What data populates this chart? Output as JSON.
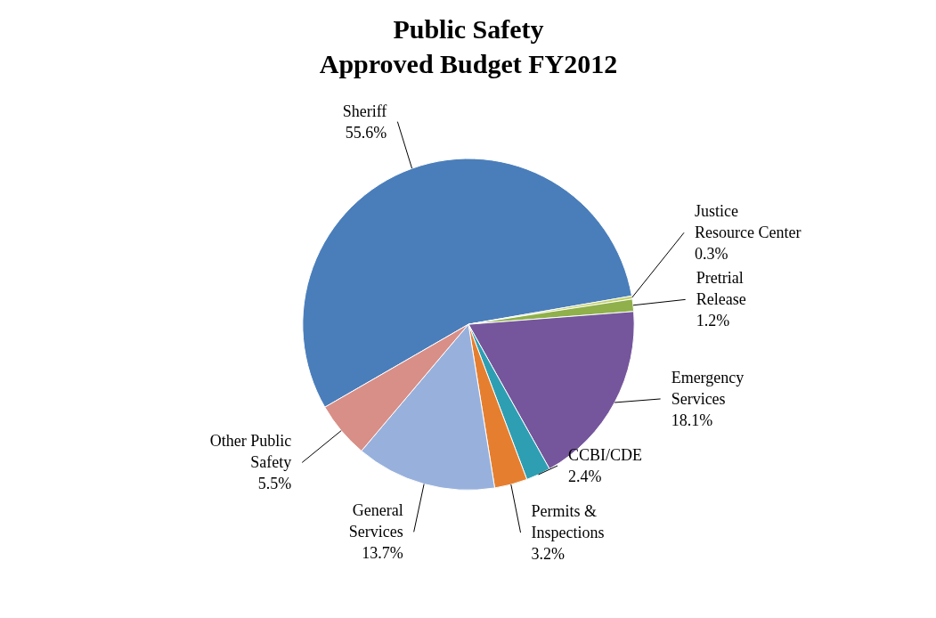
{
  "chart_data": {
    "type": "pie",
    "title": "Public Safety\nApproved Budget FY2012",
    "categories": [
      "Sheriff",
      "Justice Resource Center",
      "Pretrial Release",
      "Emergency Services",
      "CCBI/CDE",
      "Permits & Inspections",
      "General Services",
      "Other Public Safety"
    ],
    "values": [
      55.6,
      0.3,
      1.2,
      18.1,
      2.4,
      3.2,
      13.7,
      5.5
    ],
    "colors": [
      "#4a7ebb",
      "#c3d069",
      "#8fb04a",
      "#75569c",
      "#2e9fb3",
      "#e57f2f",
      "#98b1dc",
      "#d88f88"
    ],
    "value_labels": [
      "55.6%",
      "0.3%",
      "1.2%",
      "18.1%",
      "2.4%",
      "3.2%",
      "13.7%",
      "5.5%"
    ]
  }
}
